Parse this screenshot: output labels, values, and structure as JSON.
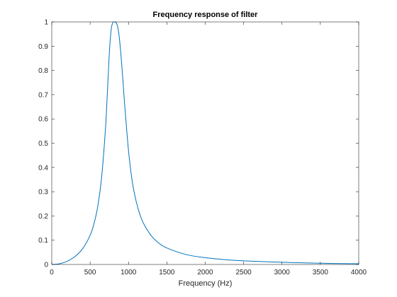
{
  "chart_data": {
    "type": "line",
    "title": "Frequency response of filter",
    "xlabel": "Frequency (Hz)",
    "ylabel": "",
    "xlim": [
      0,
      4000
    ],
    "ylim": [
      0,
      1
    ],
    "xticks": [
      0,
      500,
      1000,
      1500,
      2000,
      2500,
      3000,
      3500,
      4000
    ],
    "yticks": [
      0,
      0.1,
      0.2,
      0.3,
      0.4,
      0.5,
      0.6,
      0.7,
      0.8,
      0.9,
      1
    ],
    "xtick_labels": [
      "0",
      "500",
      "1000",
      "1500",
      "2000",
      "2500",
      "3000",
      "3500",
      "4000"
    ],
    "ytick_labels": [
      "0",
      "0.1",
      "0.2",
      "0.3",
      "0.4",
      "0.5",
      "0.6",
      "0.7",
      "0.8",
      "0.9",
      "1"
    ],
    "grid": false,
    "line_color": "#0072BD",
    "series": [
      {
        "x": [
          0,
          100,
          200,
          300,
          400,
          500,
          550,
          600,
          650,
          700,
          725,
          750,
          775,
          800,
          825,
          850,
          875,
          900,
          925,
          950,
          1000,
          1050,
          1100,
          1150,
          1200,
          1300,
          1400,
          1500,
          1750,
          2000,
          2250,
          2500,
          3000,
          3500,
          4000
        ],
        "y": [
          0,
          0.003,
          0.013,
          0.032,
          0.064,
          0.12,
          0.168,
          0.24,
          0.36,
          0.56,
          0.71,
          0.87,
          0.97,
          1.0,
          1.0,
          0.99,
          0.95,
          0.87,
          0.77,
          0.66,
          0.47,
          0.34,
          0.26,
          0.205,
          0.167,
          0.117,
          0.087,
          0.068,
          0.041,
          0.028,
          0.02,
          0.015,
          0.009,
          0.005,
          0.003
        ]
      }
    ]
  }
}
